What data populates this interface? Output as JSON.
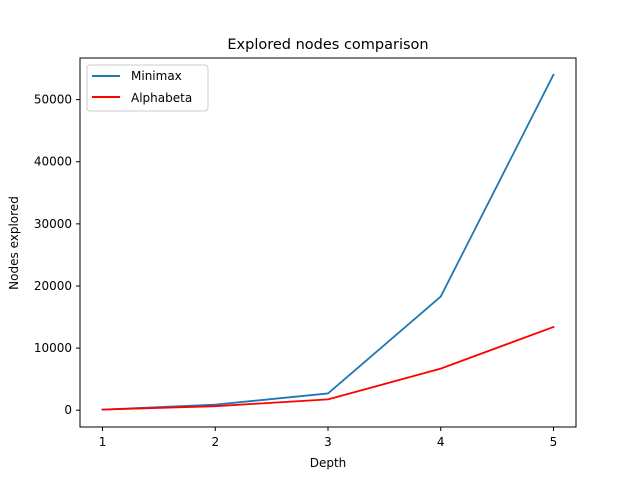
{
  "chart_data": {
    "type": "line",
    "title": "Explored nodes comparison",
    "xlabel": "Depth",
    "ylabel": "Nodes explored",
    "x": [
      1,
      2,
      3,
      4,
      5
    ],
    "x_ticks": [
      "1",
      "2",
      "3",
      "4",
      "5"
    ],
    "y_ticks": [
      0,
      10000,
      20000,
      30000,
      40000,
      50000
    ],
    "y_tick_labels": [
      "0",
      "10000",
      "20000",
      "30000",
      "40000",
      "50000"
    ],
    "xlim": [
      0.8,
      5.2
    ],
    "ylim": [
      -2700,
      56700
    ],
    "grid": false,
    "legend_position": "upper-left",
    "series": [
      {
        "name": "Minimax",
        "color": "#1f77b4",
        "values": [
          100,
          900,
          2700,
          18300,
          54000
        ]
      },
      {
        "name": "Alphabeta",
        "color": "#ff0000",
        "values": [
          100,
          650,
          1750,
          6700,
          13400
        ]
      }
    ]
  }
}
